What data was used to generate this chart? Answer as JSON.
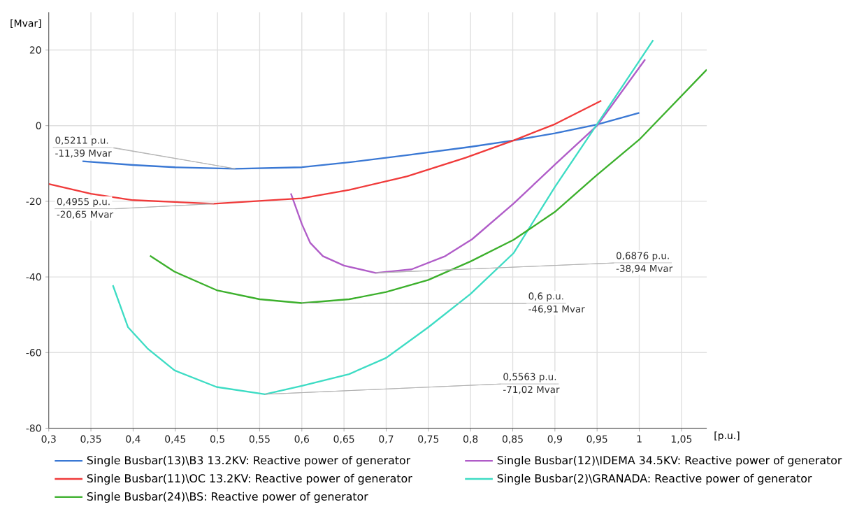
{
  "chart_data": {
    "type": "line",
    "xlabel": "[p.u.]",
    "ylabel": "[Mvar]",
    "xlim": [
      0.3,
      1.08
    ],
    "ylim": [
      -80,
      30
    ],
    "xticks": [
      {
        "value": 0.3,
        "label": "0,3"
      },
      {
        "value": 0.35,
        "label": "0,35"
      },
      {
        "value": 0.4,
        "label": "0,4"
      },
      {
        "value": 0.45,
        "label": "0,45"
      },
      {
        "value": 0.5,
        "label": "0,5"
      },
      {
        "value": 0.55,
        "label": "0,55"
      },
      {
        "value": 0.6,
        "label": "0,6"
      },
      {
        "value": 0.65,
        "label": "0,65"
      },
      {
        "value": 0.7,
        "label": "0,7"
      },
      {
        "value": 0.75,
        "label": "0,75"
      },
      {
        "value": 0.8,
        "label": "0,8"
      },
      {
        "value": 0.85,
        "label": "0,85"
      },
      {
        "value": 0.9,
        "label": "0,9"
      },
      {
        "value": 0.95,
        "label": "0,95"
      },
      {
        "value": 1,
        "label": "1"
      },
      {
        "value": 1.05,
        "label": "1,05"
      }
    ],
    "yticks": [
      -80,
      -60,
      -40,
      -20,
      0,
      20
    ],
    "grid": true,
    "legend": "bottom",
    "marker": "none",
    "line_style": "solid",
    "series": [
      {
        "name": "Single Busbar(13)\\B3 13.2KV: Reactive power of generator",
        "color": "#3a78d4",
        "x": [
          0.34,
          0.4,
          0.45,
          0.5211,
          0.6,
          0.656,
          0.725,
          0.8,
          0.851,
          0.9,
          0.95,
          1.0
        ],
        "values": [
          -9.4,
          -10.4,
          -11.0,
          -11.39,
          -11.0,
          -9.7,
          -7.8,
          -5.6,
          -3.9,
          -2.0,
          0.3,
          3.4
        ]
      },
      {
        "name": "Single Busbar(12)\\IDEMA 34.5KV: Reactive power of generator",
        "color": "#b05cc8",
        "x": [
          0.587,
          0.6,
          0.61,
          0.625,
          0.65,
          0.6876,
          0.73,
          0.77,
          0.802,
          0.851,
          0.9,
          0.95,
          1.007
        ],
        "values": [
          -17.9,
          -26,
          -31,
          -34.5,
          -37,
          -38.94,
          -38,
          -34.5,
          -30,
          -20.6,
          -10.3,
          0,
          17.5
        ]
      },
      {
        "name": "Single Busbar(11)\\OC 13.2KV: Reactive power of generator",
        "color": "#f03a3a",
        "x": [
          0.3,
          0.35,
          0.4,
          0.4955,
          0.6,
          0.656,
          0.725,
          0.794,
          0.851,
          0.9,
          0.955
        ],
        "values": [
          -15.4,
          -18.0,
          -19.7,
          -20.65,
          -19.2,
          -17.0,
          -13.4,
          -8.5,
          -3.9,
          0.4,
          6.6
        ]
      },
      {
        "name": "Single Busbar(2)\\GRANADA: Reactive power of generator",
        "color": "#3ddcc4",
        "x": [
          0.376,
          0.394,
          0.417,
          0.449,
          0.499,
          0.5563,
          0.6,
          0.656,
          0.7,
          0.75,
          0.8,
          0.851,
          0.9,
          0.95,
          1.0165
        ],
        "values": [
          -42.2,
          -53.3,
          -58.9,
          -64.7,
          -69.1,
          -71.02,
          -68.8,
          -65.7,
          -61.4,
          -53.3,
          -44.5,
          -33.7,
          -16.2,
          0.4,
          22.6
        ]
      },
      {
        "name": "Single Busbar(24)\\BS: Reactive power of generator",
        "color": "#3cb02c",
        "x": [
          0.42,
          0.449,
          0.499,
          0.55,
          0.6,
          0.656,
          0.7,
          0.75,
          0.8,
          0.851,
          0.9,
          0.95,
          1.0,
          1.08
        ],
        "values": [
          -34.4,
          -38.6,
          -43.5,
          -45.9,
          -46.91,
          -45.9,
          -44,
          -40.8,
          -35.9,
          -30.2,
          -22.8,
          -13,
          -3.7,
          14.8
        ]
      }
    ],
    "annotations": [
      {
        "text": "0,5211 p.u.",
        "x": 0.5211,
        "y": -11.39
      },
      {
        "text": "-11,39 Mvar",
        "x": 0.5211,
        "y": -11.39
      },
      {
        "text": "0,4955 p.u.",
        "x": 0.4955,
        "y": -20.65
      },
      {
        "text": "-20,65 Mvar",
        "x": 0.4955,
        "y": -20.65
      },
      {
        "text": "0,6876 p.u.",
        "x": 0.6876,
        "y": -38.94
      },
      {
        "text": "-38,94 Mvar",
        "x": 0.6876,
        "y": -38.94
      },
      {
        "text": "0,6 p.u.",
        "x": 0.6,
        "y": -46.91
      },
      {
        "text": "-46,91 Mvar",
        "x": 0.6,
        "y": -46.91
      },
      {
        "text": "0,5563 p.u.",
        "x": 0.5563,
        "y": -71.02
      },
      {
        "text": "-71,02 Mvar",
        "x": 0.5563,
        "y": -71.02
      }
    ]
  }
}
